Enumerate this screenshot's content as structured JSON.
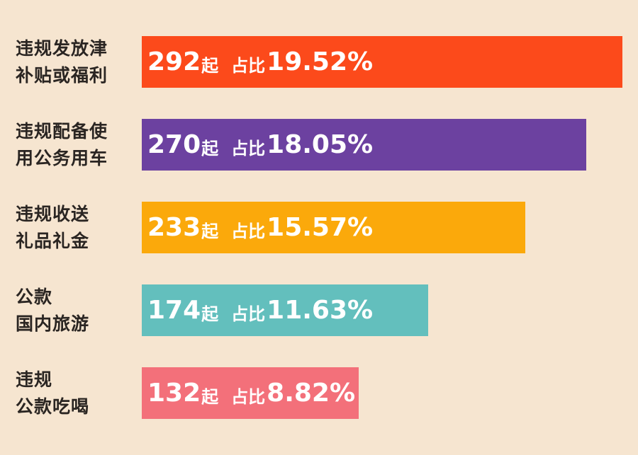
{
  "chart_data": {
    "type": "bar",
    "orientation": "horizontal",
    "categories": [
      [
        "违规发放津",
        "补贴或福利"
      ],
      [
        "违规配备使",
        "用公务用车"
      ],
      [
        "违规收送",
        "礼品礼金"
      ],
      [
        "公款",
        "国内旅游"
      ],
      [
        "违规",
        "公款吃喝"
      ]
    ],
    "values": [
      292,
      270,
      233,
      174,
      132
    ],
    "value_unit": "起",
    "share_prefix": "占比",
    "percentages": [
      "19.52%",
      "18.05%",
      "15.57%",
      "11.63%",
      "8.82%"
    ],
    "colors": [
      "#fc4a1b",
      "#6c41a0",
      "#fba90b",
      "#63bfbd",
      "#f3707a"
    ],
    "xlim": [
      0,
      292
    ],
    "background": "#f6e5d0"
  }
}
